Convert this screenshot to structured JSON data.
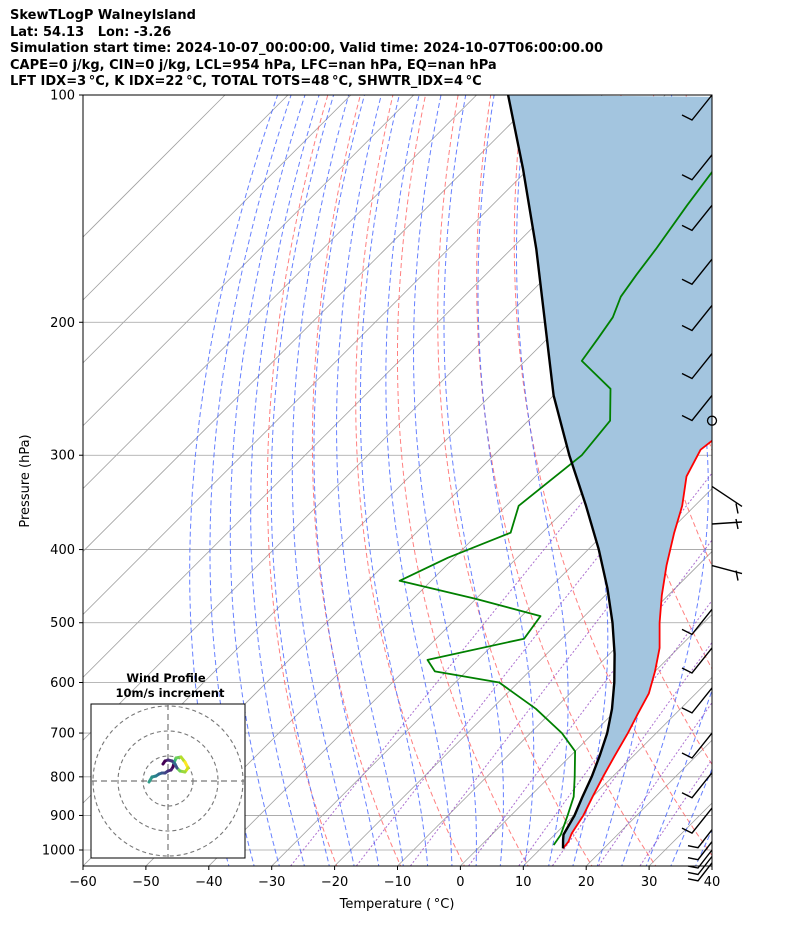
{
  "header": {
    "line1": "SkewTLogP WalneyIsland",
    "line2": "Lat: 54.13   Lon: -3.26",
    "line3": "Simulation start time: 2024-10-07_00:00:00, Valid time: 2024-10-07T06:00:00.00",
    "line4": "CAPE=0 j/kg, CIN=0 j/kg, LCL=954 hPa, LFC=nan hPa, EQ=nan hPa",
    "line5": "LFT IDX=3 °C, K IDX=22 °C, TOTAL TOTS=48 °C, SHWTR_IDX=4 °C"
  },
  "axes": {
    "xlabel": "Temperature ( °C)",
    "ylabel": "Pressure (hPa)"
  },
  "inset": {
    "title1": "Wind Profile",
    "title2": "10m/s increment"
  },
  "colors": {
    "temperature": "#ff0000",
    "dewpoint": "#008000",
    "parcel": "#000000",
    "shade": "#a3c5df",
    "isotherm": "#a0a0a0",
    "dry_adiabat": "#ff6060",
    "moist_adiabat": "#4060ff",
    "mixing_ratio": "#9040c0"
  },
  "chart_data": {
    "type": "skewt",
    "x_unit": "degC",
    "y_unit": "hPa",
    "xlim": [
      -60,
      40
    ],
    "ylim": [
      1050,
      100
    ],
    "y_scale": "log",
    "xticks": [
      -60,
      -50,
      -40,
      -30,
      -20,
      -10,
      0,
      10,
      20,
      30,
      40
    ],
    "yticks": [
      1000,
      900,
      800,
      700,
      600,
      500,
      400,
      300,
      200,
      100
    ],
    "grid": true,
    "series": [
      {
        "key": "temperature",
        "points": [
          [
            13.5,
            995
          ],
          [
            13.3,
            975
          ],
          [
            12.5,
            950
          ],
          [
            11.5,
            900
          ],
          [
            10,
            850
          ],
          [
            8.5,
            800
          ],
          [
            7,
            750
          ],
          [
            5.5,
            700
          ],
          [
            4,
            660
          ],
          [
            2.5,
            620
          ],
          [
            0,
            580
          ],
          [
            -3,
            540
          ],
          [
            -7,
            500
          ],
          [
            -11,
            460
          ],
          [
            -15,
            420
          ],
          [
            -19,
            380
          ],
          [
            -22,
            350
          ],
          [
            -26,
            320
          ],
          [
            -28,
            295
          ],
          [
            -27,
            275
          ],
          [
            -27,
            258
          ],
          [
            -29,
            243
          ],
          [
            -32,
            228
          ],
          [
            -34.5,
            215
          ],
          [
            -36,
            205
          ],
          [
            -38,
            190
          ],
          [
            -40,
            175
          ],
          [
            -42,
            160
          ],
          [
            -45,
            145
          ],
          [
            -49,
            130
          ],
          [
            -54,
            115
          ],
          [
            -57.5,
            101
          ]
        ]
      },
      {
        "key": "dewpoint",
        "points": [
          [
            11.5,
            985
          ],
          [
            11,
            955
          ],
          [
            9,
            900
          ],
          [
            7,
            850
          ],
          [
            4,
            800
          ],
          [
            0,
            740
          ],
          [
            -5,
            700
          ],
          [
            -13,
            650
          ],
          [
            -23,
            600
          ],
          [
            -35,
            580
          ],
          [
            -38,
            560
          ],
          [
            -26,
            525
          ],
          [
            -27,
            490
          ],
          [
            -40,
            465
          ],
          [
            -55,
            440
          ],
          [
            -51,
            410
          ],
          [
            -45,
            380
          ],
          [
            -48,
            350
          ],
          [
            -46,
            300
          ],
          [
            -47,
            270
          ],
          [
            -52,
            245
          ],
          [
            -61,
            225
          ],
          [
            -62,
            210
          ],
          [
            -63,
            197
          ],
          [
            -65,
            185
          ],
          [
            -66,
            173
          ],
          [
            -67,
            160
          ],
          [
            -69,
            140
          ],
          [
            -71,
            120
          ],
          [
            -72.5,
            101
          ]
        ]
      },
      {
        "key": "parcel",
        "points": [
          [
            13.5,
            995
          ],
          [
            12.2,
            970
          ],
          [
            11.4,
            954
          ],
          [
            10.1,
            900
          ],
          [
            8.4,
            850
          ],
          [
            6.7,
            800
          ],
          [
            4.6,
            750
          ],
          [
            2.2,
            700
          ],
          [
            -0.9,
            650
          ],
          [
            -4.7,
            600
          ],
          [
            -9.2,
            550
          ],
          [
            -14.5,
            500
          ],
          [
            -20.8,
            450
          ],
          [
            -28.3,
            400
          ],
          [
            -37.3,
            350
          ],
          [
            -48,
            300
          ],
          [
            -60,
            250
          ],
          [
            -73,
            200
          ],
          [
            -86,
            160
          ],
          [
            -101,
            125
          ],
          [
            -115,
            100
          ]
        ]
      }
    ],
    "wind_barbs": {
      "pressure_hPa": [
        100,
        120,
        140,
        165,
        190,
        220,
        250,
        270,
        330,
        370,
        420,
        480,
        540,
        610,
        700,
        790,
        880,
        940,
        975,
        1000,
        1020,
        1040
      ]
    },
    "hodograph": {
      "title": "Wind Profile",
      "subtitle": "10m/s increment",
      "colormap": "viridis"
    }
  }
}
